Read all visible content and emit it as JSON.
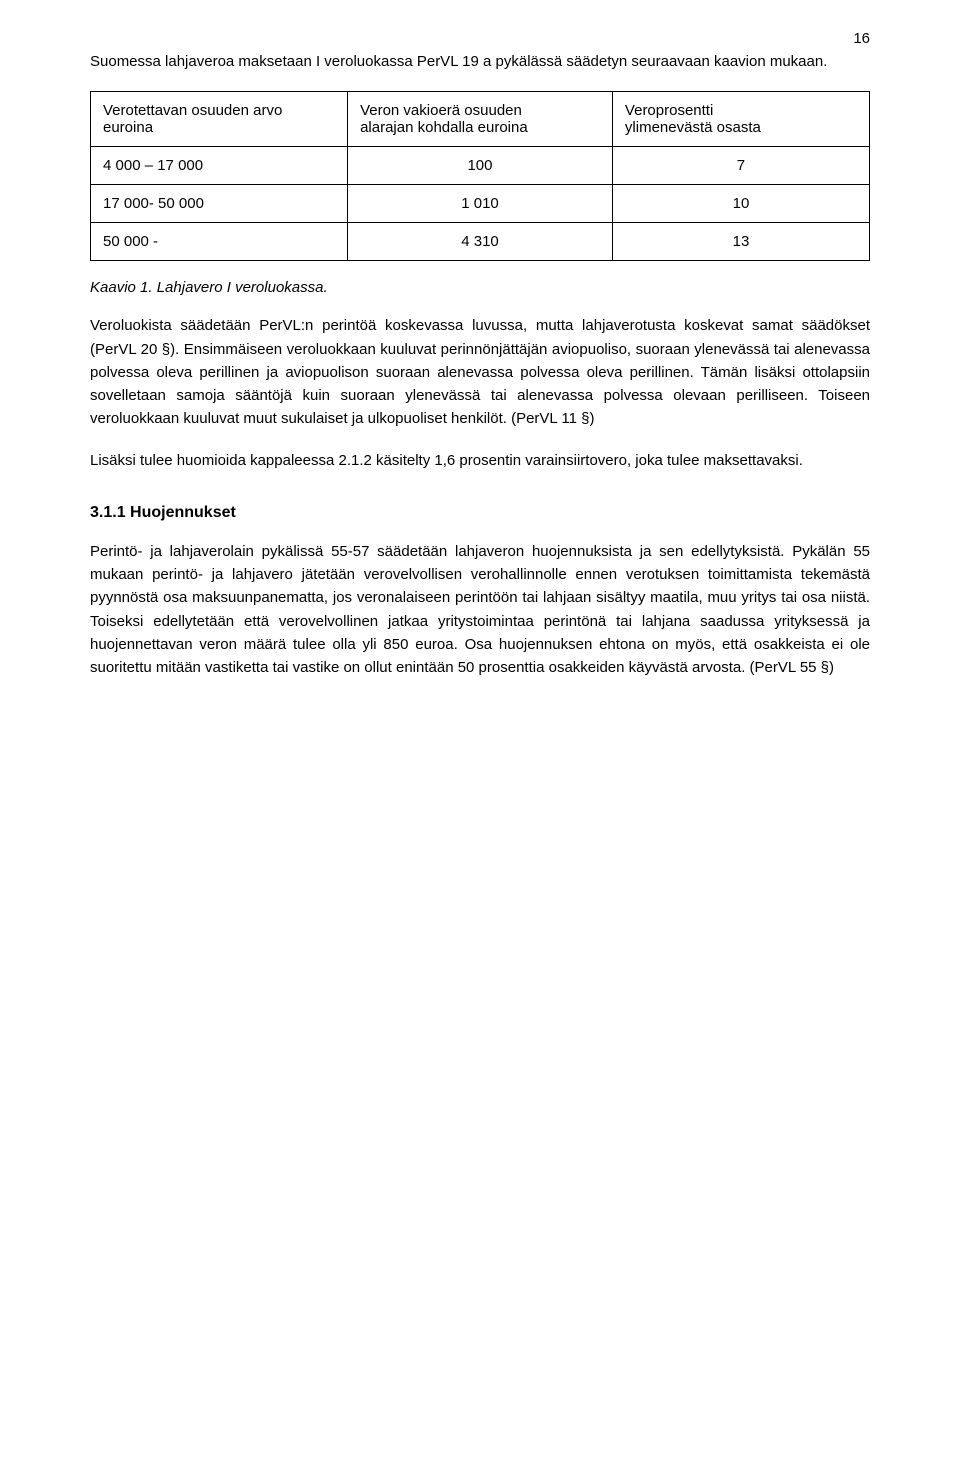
{
  "page_number": "16",
  "intro_paragraph": "Suomessa lahjaveroa maksetaan I veroluokassa PerVL 19 a pykälässä säädetyn seuraavaan kaavion mukaan.",
  "table": {
    "header": {
      "col1_line1": "Verotettavan osuuden arvo",
      "col1_line2": "euroina",
      "col2_line1": "Veron vakioerä osuuden",
      "col2_line2": "alarajan kohdalla euroina",
      "col3_line1": "Veroprosentti",
      "col3_line2": "ylimenevästä osasta"
    },
    "rows": [
      {
        "c1": "4 000 – 17 000",
        "c2": "100",
        "c3": "7"
      },
      {
        "c1": "17 000- 50 000",
        "c2": "1 010",
        "c3": "10"
      },
      {
        "c1": "50 000 -",
        "c2": "4 310",
        "c3": "13"
      }
    ]
  },
  "caption": "Kaavio 1. Lahjavero I veroluokassa.",
  "para2": "Veroluokista säädetään PerVL:n perintöä koskevassa luvussa, mutta lahjaverotusta koskevat samat säädökset (PerVL 20 §). Ensimmäiseen veroluokkaan kuuluvat perinnönjättäjän aviopuoliso, suoraan ylenevässä tai alenevassa polvessa oleva perillinen ja aviopuolison suoraan alenevassa polvessa oleva perillinen. Tämän lisäksi ottolapsiin sovelletaan samoja sääntöjä kuin suoraan ylenevässä tai alenevassa polvessa olevaan perilliseen. Toiseen veroluokkaan kuuluvat muut sukulaiset ja ulkopuoliset henkilöt. (PerVL 11 §)",
  "para3": "Lisäksi tulee huomioida kappaleessa 2.1.2 käsitelty 1,6 prosentin varainsiirtovero, joka tulee maksettavaksi.",
  "heading": "3.1.1 Huojennukset",
  "para4": "Perintö- ja lahjaverolain pykälissä 55-57 säädetään lahjaveron huojennuksista ja sen edellytyksistä. Pykälän 55 mukaan perintö- ja lahjavero jätetään verovelvollisen verohallinnolle ennen verotuksen toimittamista tekemästä pyynnöstä osa maksuunpanematta, jos veronalaiseen perintöön tai lahjaan sisältyy maatila, muu yritys tai osa niistä. Toiseksi edellytetään että verovelvollinen jatkaa yritystoimintaa perintönä tai lahjana saadussa yrityksessä ja huojennettavan veron määrä tulee olla yli 850 euroa. Osa huojennuksen ehtona on myös, että osakkeista ei ole suoritettu mitään vastiketta tai vastike on ollut enintään 50 prosenttia osakkeiden käyvästä arvosta. (PerVL 55 §)"
}
